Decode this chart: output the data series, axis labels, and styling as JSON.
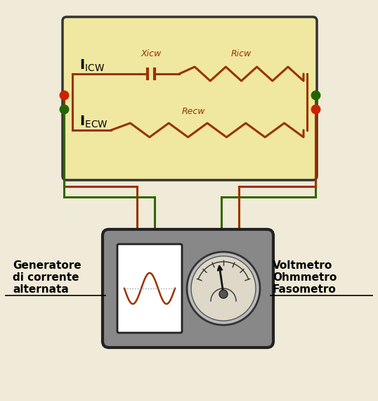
{
  "bg_color": "#f0ead8",
  "circuit_box_color": "#f0e8a0",
  "circuit_box_border": "#333333",
  "wire_red": "#993300",
  "wire_green": "#336600",
  "device_box_color": "#888888",
  "device_box_border": "#222222",
  "osc_bg": "#ffffff",
  "meter_bg": "#ddd8c8",
  "meter_ring": "#bbbbbb",
  "label_icw": "$\\mathbf{I}_{\\mathrm{ICW}}$",
  "label_iecw": "$\\mathbf{I}_{\\mathrm{ECW}}$",
  "label_xicw": "Xicw",
  "label_ricw": "Ricw",
  "label_recw": "Recw",
  "gen_label": "Generatore\ndi corrente\nalternata",
  "meter_label": "Voltmetro\nOhmmetro\nFasometro",
  "dot_red": "#cc2200",
  "dot_green": "#226600"
}
